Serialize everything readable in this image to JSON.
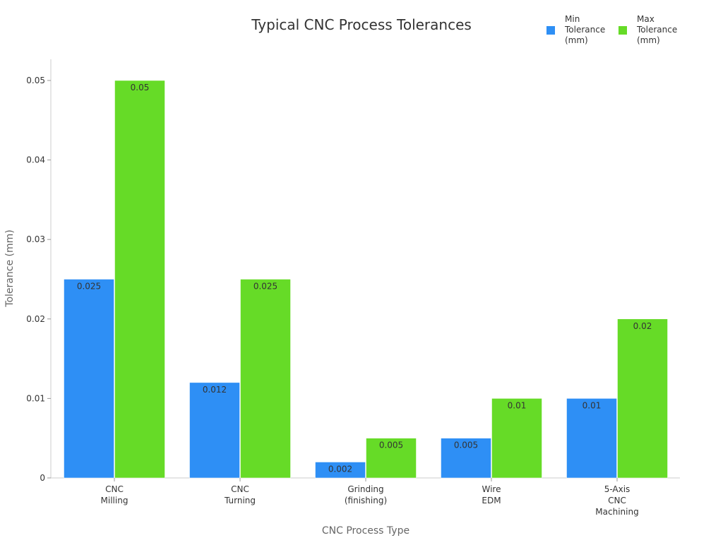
{
  "chart_data": {
    "type": "bar",
    "title": "Typical CNC Process Tolerances",
    "xlabel": "CNC Process Type",
    "ylabel": "Tolerance (mm)",
    "ylim": [
      0,
      0.05
    ],
    "yticks": [
      "0",
      "0.01",
      "0.02",
      "0.03",
      "0.04",
      "0.05"
    ],
    "grid": false,
    "legend_position": "top-right",
    "categories": [
      [
        "CNC",
        "Milling"
      ],
      [
        "CNC",
        "Turning"
      ],
      [
        "Grinding",
        "(finishing)"
      ],
      [
        "Wire",
        "EDM"
      ],
      [
        "5-Axis",
        "CNC",
        "Machining"
      ]
    ],
    "series": [
      {
        "name": [
          "Min",
          "Tolerance",
          "(mm)"
        ],
        "color": "#2e8ff5",
        "values": [
          0.025,
          0.012,
          0.002,
          0.005,
          0.01
        ],
        "labels": [
          "0.025",
          "0.012",
          "0.002",
          "0.005",
          "0.01"
        ]
      },
      {
        "name": [
          "Max",
          "Tolerance",
          "(mm)"
        ],
        "color": "#66db27",
        "values": [
          0.05,
          0.025,
          0.005,
          0.01,
          0.02
        ],
        "labels": [
          "0.05",
          "0.025",
          "0.005",
          "0.01",
          "0.02"
        ]
      }
    ]
  }
}
